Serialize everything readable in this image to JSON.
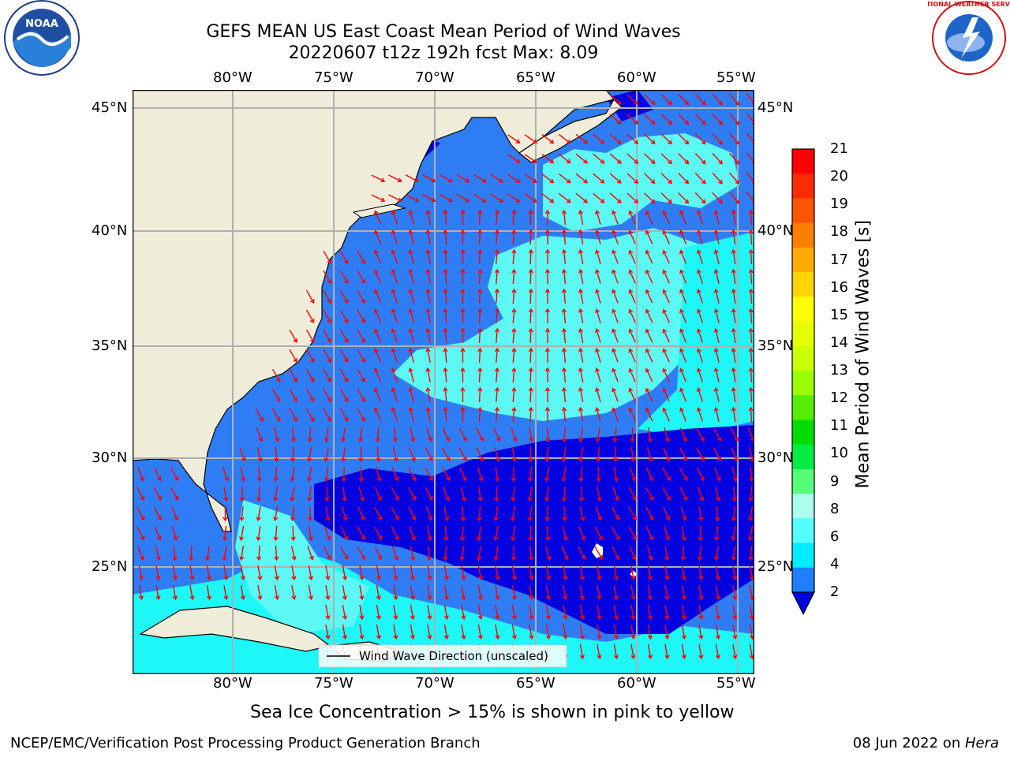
{
  "title": {
    "line1": "GEFS MEAN US East Coast Mean Period of Wind Waves",
    "line2": "20220607 t12z 192h fcst   Max: 8.09"
  },
  "logos": {
    "left": "NOAA",
    "right": "NATIONAL WEATHER SERVICE"
  },
  "map": {
    "lon_ticks": [
      "80°W",
      "75°W",
      "70°W",
      "65°W",
      "60°W",
      "55°W"
    ],
    "lat_ticks": [
      "45°N",
      "40°N",
      "35°N",
      "30°N",
      "25°N"
    ],
    "legend_label": "Wind Wave Direction (unscaled)",
    "colors": {
      "land": "#efedda",
      "blue_dark": "#0000e0",
      "blue_mid": "#2f7df5",
      "cyan": "#1ef7f7",
      "cyan_light": "#5cf9f4",
      "arrow": "#ff0000",
      "grid": "#b0b0b0"
    }
  },
  "colorbar": {
    "label": "Mean Period of Wind Waves [s]",
    "ticks": [
      "21",
      "20",
      "19",
      "18",
      "17",
      "16",
      "15",
      "14",
      "13",
      "12",
      "11",
      "10",
      "9",
      "8",
      "6",
      "4",
      "2"
    ],
    "colors": [
      "#ff0000",
      "#ff2a00",
      "#ff5500",
      "#ff8000",
      "#ffaa00",
      "#ffd400",
      "#ffff00",
      "#e6ff00",
      "#ccff00",
      "#99ff00",
      "#55ee00",
      "#00dd00",
      "#00ee44",
      "#55ff77",
      "#aaffee",
      "#55ffff",
      "#00eeff",
      "#1e80ff"
    ]
  },
  "subtitle": "Sea Ice Concentration > 15% is shown in pink to yellow",
  "footer": {
    "left": "NCEP/EMC/Verification Post Processing Product Generation Branch",
    "right_date": "08 Jun 2022 on ",
    "right_machine": "Hera"
  }
}
